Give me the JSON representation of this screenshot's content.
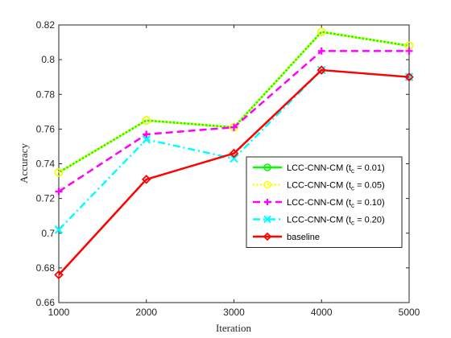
{
  "chart_data": {
    "type": "line",
    "xlabel": "Iteration",
    "ylabel": "Accuracy",
    "x": [
      1000,
      2000,
      3000,
      4000,
      5000
    ],
    "xlim": [
      1000,
      5000
    ],
    "ylim": [
      0.66,
      0.82
    ],
    "xticks": [
      "1000",
      "2000",
      "3000",
      "4000",
      "5000"
    ],
    "yticks": [
      "0.66",
      "0.68",
      "0.7",
      "0.72",
      "0.74",
      "0.76",
      "0.78",
      "0.8",
      "0.82"
    ],
    "grid": false,
    "legend_position": "right",
    "series": [
      {
        "name": "LCC-CNN-CM (t_c = 0.01)",
        "legend_main": "LCC-CNN-CM (t",
        "legend_sub": "c",
        "legend_tail": " = 0.01)",
        "values": [
          0.735,
          0.765,
          0.761,
          0.816,
          0.808
        ],
        "color": "#00ff00",
        "line": "solid",
        "marker": "circle"
      },
      {
        "name": "LCC-CNN-CM (t_c = 0.05)",
        "legend_main": "LCC-CNN-CM (t",
        "legend_sub": "c",
        "legend_tail": " = 0.05)",
        "values": [
          0.735,
          0.765,
          0.761,
          0.816,
          0.808
        ],
        "color": "#ffff00",
        "line": "dotted",
        "marker": "circle"
      },
      {
        "name": "LCC-CNN-CM (t_c = 0.10)",
        "legend_main": "LCC-CNN-CM (t",
        "legend_sub": "c",
        "legend_tail": " = 0.10)",
        "values": [
          0.724,
          0.757,
          0.761,
          0.805,
          0.805
        ],
        "color": "#ff00ff",
        "line": "dashed",
        "marker": "plus"
      },
      {
        "name": "LCC-CNN-CM (t_c = 0.20)",
        "legend_main": "LCC-CNN-CM (t",
        "legend_sub": "c",
        "legend_tail": " = 0.20)",
        "values": [
          0.702,
          0.754,
          0.743,
          0.794,
          0.79
        ],
        "color": "#00ffff",
        "line": "dashdot",
        "marker": "x"
      },
      {
        "name": "baseline",
        "legend_main": "baseline",
        "legend_sub": "",
        "legend_tail": "",
        "values": [
          0.676,
          0.731,
          0.746,
          0.794,
          0.79
        ],
        "color": "#ff0000",
        "line": "solid",
        "marker": "diamond"
      }
    ]
  }
}
